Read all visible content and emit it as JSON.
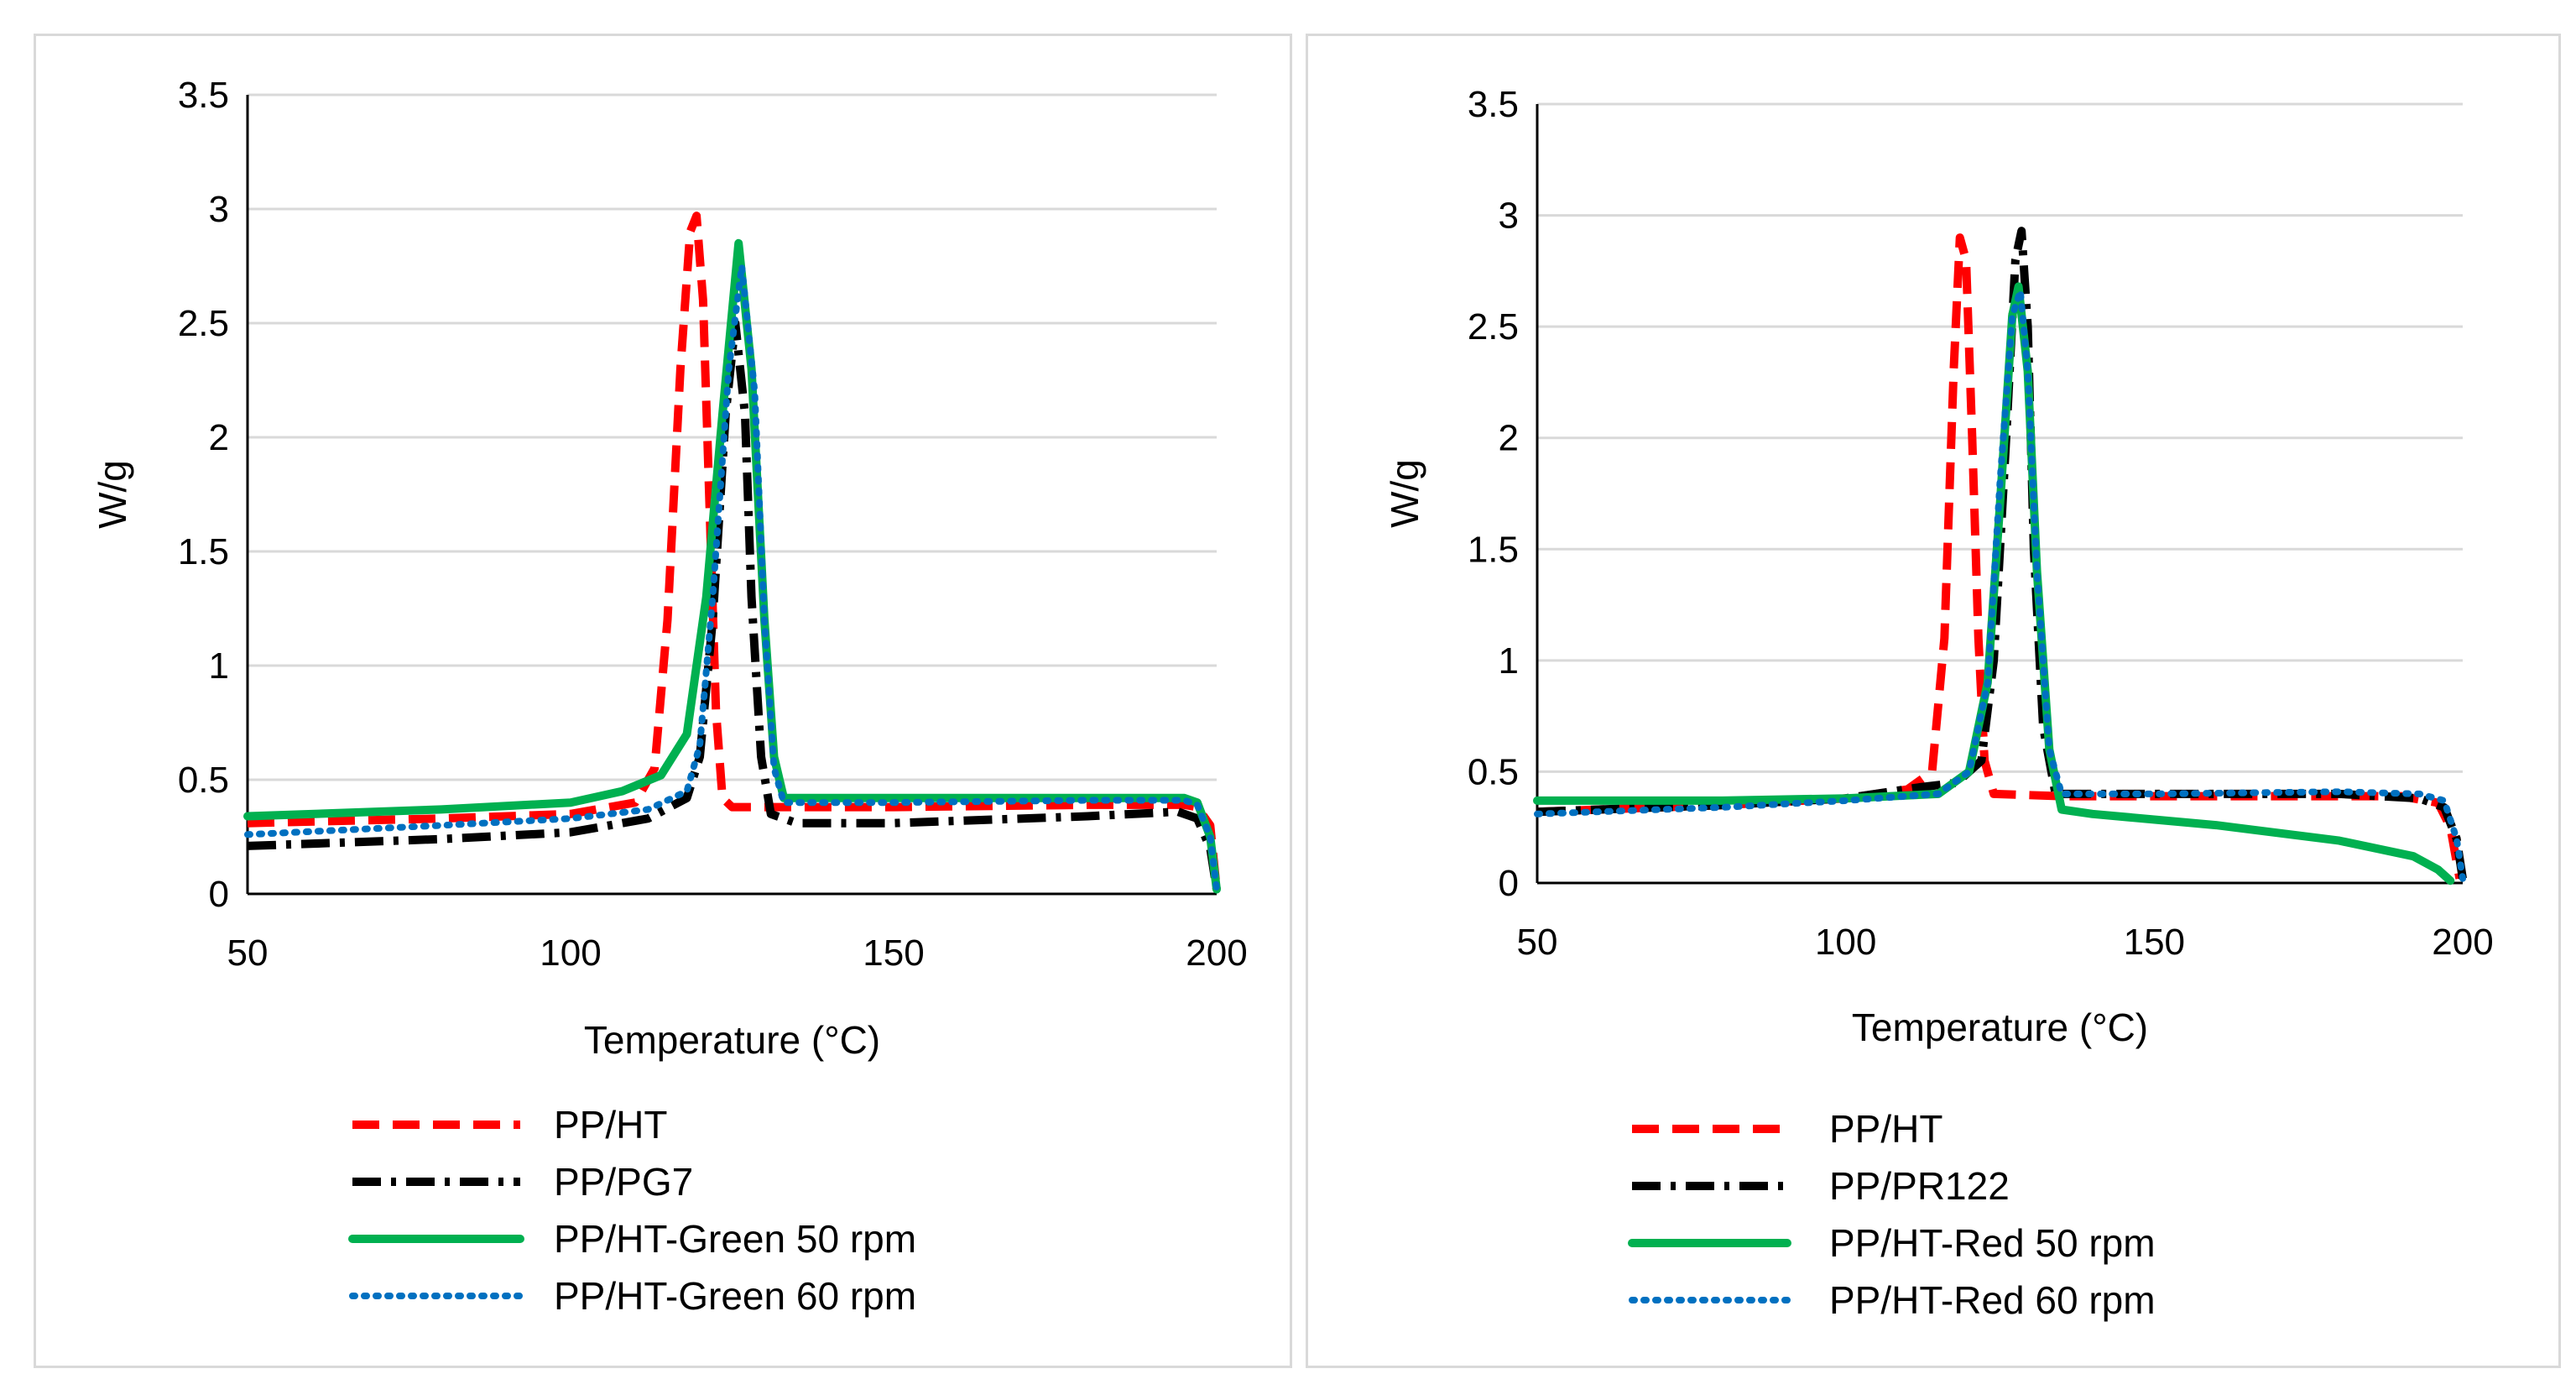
{
  "chart_data": [
    {
      "type": "line",
      "xlabel": "Temperature (°C)",
      "ylabel": "W/g",
      "xlim": [
        50,
        200
      ],
      "ylim": [
        0,
        3.5
      ],
      "xticks": [
        "50",
        "100",
        "150",
        "200"
      ],
      "yticks": [
        "0",
        "0.5",
        "1",
        "1.5",
        "2",
        "2.5",
        "3",
        "3.5"
      ],
      "grid": "horizontal",
      "legend_position": "bottom",
      "series": [
        {
          "name": "PP/HT",
          "color": "#ff0000",
          "style": "dashed",
          "points": [
            [
              50,
              0.31
            ],
            [
              80,
              0.33
            ],
            [
              100,
              0.35
            ],
            [
              110,
              0.4
            ],
            [
              113,
              0.55
            ],
            [
              115,
              1.2
            ],
            [
              117,
              2.3
            ],
            [
              118.5,
              2.9
            ],
            [
              119.5,
              2.97
            ],
            [
              120.5,
              2.6
            ],
            [
              121.5,
              1.7
            ],
            [
              122.5,
              0.8
            ],
            [
              123.5,
              0.42
            ],
            [
              125,
              0.38
            ],
            [
              150,
              0.38
            ],
            [
              180,
              0.39
            ],
            [
              195,
              0.39
            ],
            [
              197,
              0.38
            ],
            [
              199,
              0.3
            ],
            [
              200,
              0.02
            ]
          ]
        },
        {
          "name": "PP/PG7",
          "color": "#000000",
          "style": "dashdot",
          "points": [
            [
              50,
              0.21
            ],
            [
              80,
              0.24
            ],
            [
              100,
              0.27
            ],
            [
              112,
              0.33
            ],
            [
              118,
              0.42
            ],
            [
              120,
              0.6
            ],
            [
              122,
              1.2
            ],
            [
              124,
              2.1
            ],
            [
              125.5,
              2.5
            ],
            [
              127,
              2.1
            ],
            [
              128,
              1.3
            ],
            [
              129.5,
              0.6
            ],
            [
              131,
              0.35
            ],
            [
              135,
              0.31
            ],
            [
              150,
              0.31
            ],
            [
              180,
              0.34
            ],
            [
              194,
              0.36
            ],
            [
              197,
              0.33
            ],
            [
              199,
              0.2
            ],
            [
              200,
              0.02
            ]
          ]
        },
        {
          "name": "PP/HT-Green 50 rpm",
          "color": "#00b050",
          "style": "solid",
          "points": [
            [
              50,
              0.34
            ],
            [
              80,
              0.37
            ],
            [
              100,
              0.4
            ],
            [
              108,
              0.45
            ],
            [
              114,
              0.52
            ],
            [
              118,
              0.7
            ],
            [
              121,
              1.3
            ],
            [
              123.5,
              2.1
            ],
            [
              126,
              2.85
            ],
            [
              128,
              2.3
            ],
            [
              130,
              1.2
            ],
            [
              131.5,
              0.6
            ],
            [
              133,
              0.42
            ],
            [
              150,
              0.42
            ],
            [
              180,
              0.42
            ],
            [
              195,
              0.42
            ],
            [
              197,
              0.4
            ],
            [
              199,
              0.25
            ],
            [
              200,
              0.02
            ]
          ]
        },
        {
          "name": "PP/HT-Green 60 rpm",
          "color": "#0070c0",
          "style": "dotted",
          "points": [
            [
              50,
              0.26
            ],
            [
              80,
              0.3
            ],
            [
              100,
              0.33
            ],
            [
              112,
              0.37
            ],
            [
              118,
              0.45
            ],
            [
              120,
              0.65
            ],
            [
              122,
              1.3
            ],
            [
              124.5,
              2.3
            ],
            [
              126.5,
              2.75
            ],
            [
              128.5,
              2.2
            ],
            [
              130,
              1.2
            ],
            [
              131.5,
              0.55
            ],
            [
              133,
              0.4
            ],
            [
              150,
              0.4
            ],
            [
              180,
              0.41
            ],
            [
              195,
              0.41
            ],
            [
              197,
              0.39
            ],
            [
              199,
              0.25
            ],
            [
              200,
              0.02
            ]
          ]
        }
      ]
    },
    {
      "type": "line",
      "xlabel": "Temperature (°C)",
      "ylabel": "W/g",
      "xlim": [
        50,
        200
      ],
      "ylim": [
        0,
        3.5
      ],
      "xticks": [
        "50",
        "100",
        "150",
        "200"
      ],
      "yticks": [
        "0",
        "0.5",
        "1",
        "1.5",
        "2",
        "2.5",
        "3",
        "3.5"
      ],
      "grid": "horizontal",
      "legend_position": "bottom",
      "series": [
        {
          "name": "PP/HT",
          "color": "#ff0000",
          "style": "dashed",
          "points": [
            [
              50,
              0.32
            ],
            [
              80,
              0.35
            ],
            [
              100,
              0.38
            ],
            [
              110,
              0.42
            ],
            [
              114,
              0.5
            ],
            [
              116,
              1.1
            ],
            [
              117.5,
              2.3
            ],
            [
              118.5,
              2.9
            ],
            [
              119.5,
              2.8
            ],
            [
              120.5,
              2.0
            ],
            [
              121.5,
              1.1
            ],
            [
              122.5,
              0.55
            ],
            [
              124,
              0.4
            ],
            [
              135,
              0.39
            ],
            [
              160,
              0.39
            ],
            [
              190,
              0.39
            ],
            [
              196,
              0.36
            ],
            [
              198,
              0.25
            ],
            [
              199.5,
              0.02
            ]
          ]
        },
        {
          "name": "PP/PR122",
          "color": "#000000",
          "style": "dashdot",
          "points": [
            [
              50,
              0.32
            ],
            [
              80,
              0.35
            ],
            [
              100,
              0.38
            ],
            [
              112,
              0.43
            ],
            [
              118,
              0.45
            ],
            [
              122,
              0.55
            ],
            [
              124,
              1.0
            ],
            [
              126,
              2.0
            ],
            [
              127.5,
              2.8
            ],
            [
              128.5,
              2.93
            ],
            [
              129.5,
              2.5
            ],
            [
              130.5,
              1.5
            ],
            [
              132,
              0.7
            ],
            [
              134,
              0.4
            ],
            [
              150,
              0.4
            ],
            [
              180,
              0.4
            ],
            [
              193,
              0.38
            ],
            [
              197,
              0.34
            ],
            [
              199,
              0.2
            ],
            [
              200,
              0.02
            ]
          ]
        },
        {
          "name": "PP/HT-Red 50 rpm",
          "color": "#00b050",
          "style": "solid",
          "points": [
            [
              50,
              0.37
            ],
            [
              80,
              0.37
            ],
            [
              100,
              0.38
            ],
            [
              115,
              0.4
            ],
            [
              120,
              0.5
            ],
            [
              123,
              0.9
            ],
            [
              125,
              1.7
            ],
            [
              127,
              2.55
            ],
            [
              128,
              2.68
            ],
            [
              129.5,
              2.3
            ],
            [
              131,
              1.4
            ],
            [
              133,
              0.6
            ],
            [
              135,
              0.33
            ],
            [
              140,
              0.31
            ],
            [
              160,
              0.26
            ],
            [
              180,
              0.19
            ],
            [
              192,
              0.12
            ],
            [
              196,
              0.06
            ],
            [
              198,
              0.01
            ]
          ]
        },
        {
          "name": "PP/HT-Red 60 rpm",
          "color": "#0070c0",
          "style": "dotted",
          "points": [
            [
              50,
              0.31
            ],
            [
              80,
              0.34
            ],
            [
              100,
              0.37
            ],
            [
              115,
              0.4
            ],
            [
              120,
              0.5
            ],
            [
              123,
              0.9
            ],
            [
              125,
              1.8
            ],
            [
              127,
              2.55
            ],
            [
              128.3,
              2.66
            ],
            [
              129.5,
              2.3
            ],
            [
              131,
              1.4
            ],
            [
              133,
              0.6
            ],
            [
              135,
              0.4
            ],
            [
              150,
              0.4
            ],
            [
              180,
              0.41
            ],
            [
              193,
              0.4
            ],
            [
              197,
              0.37
            ],
            [
              199,
              0.2
            ],
            [
              200,
              0.02
            ]
          ]
        }
      ]
    }
  ]
}
